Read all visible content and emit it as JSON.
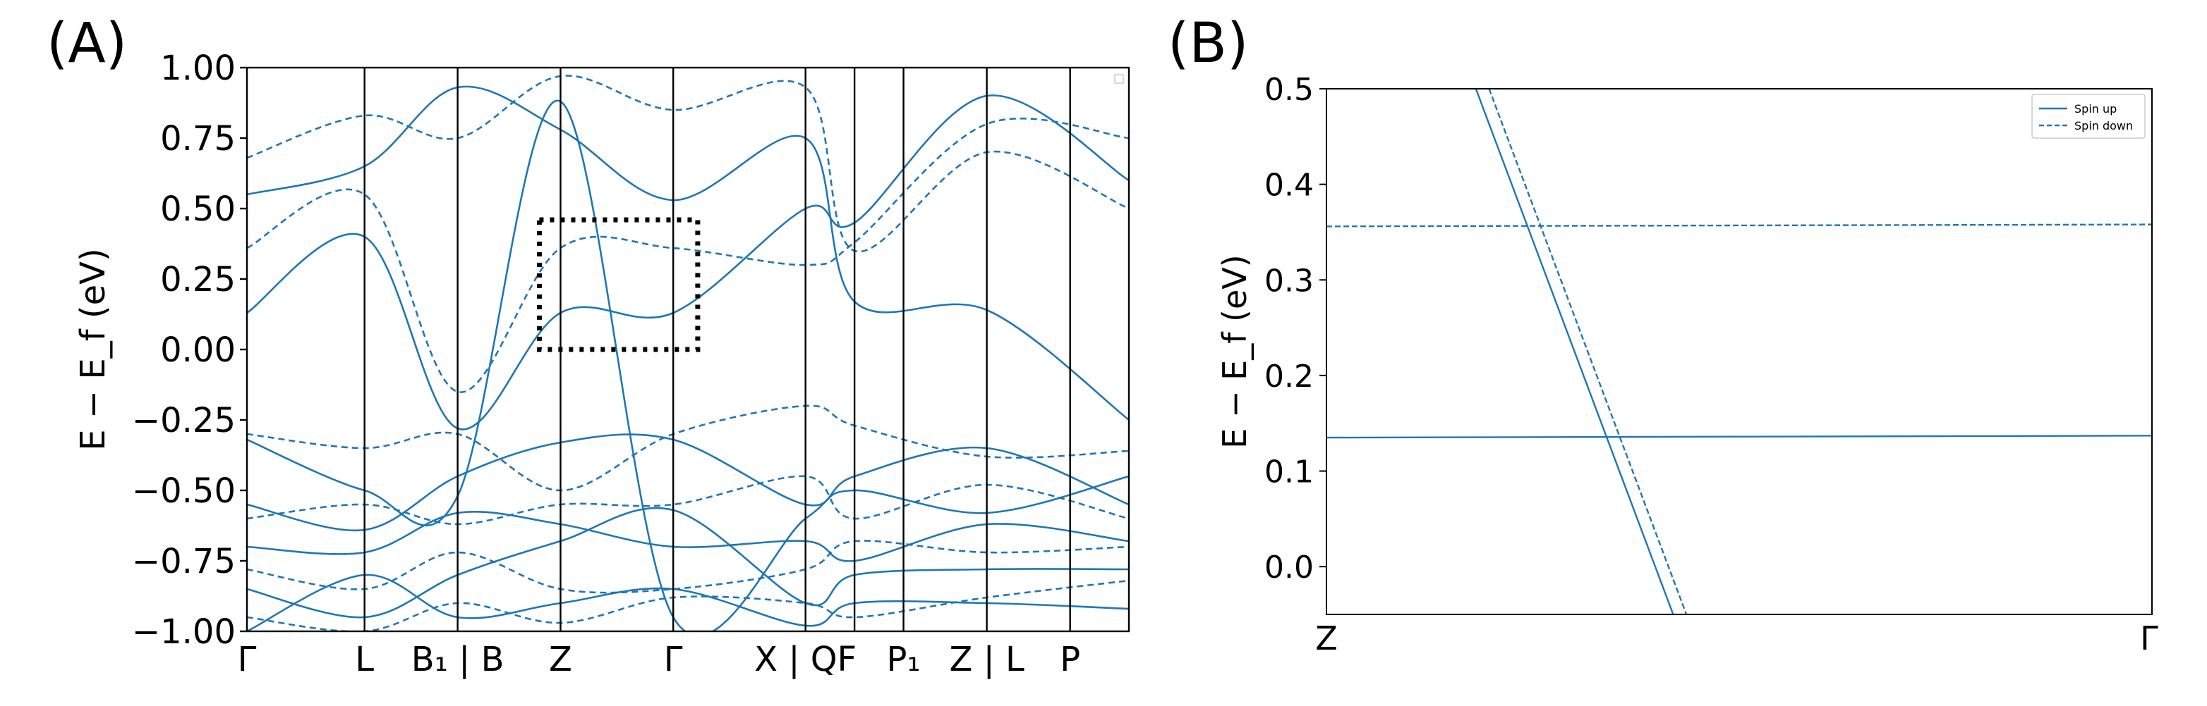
{
  "figure": {
    "panel_a_label": "(A)",
    "panel_b_label": "(B)"
  },
  "chart_data": [
    {
      "type": "line",
      "panel": "A",
      "title": "",
      "xlabel": "",
      "ylabel": "E − E_f (eV)",
      "ylim": [
        -1.0,
        1.0
      ],
      "yticks": [
        "1.00",
        "0.75",
        "0.50",
        "0.25",
        "0.00",
        "−0.25",
        "−0.50",
        "−0.75",
        "−1.00"
      ],
      "ytick_values": [
        1.0,
        0.75,
        0.5,
        0.25,
        0.0,
        -0.25,
        -0.5,
        -0.75,
        -1.0
      ],
      "xlim": [
        0,
        9.0
      ],
      "kpath_positions": [
        0,
        1.2,
        2.15,
        3.2,
        4.35,
        5.7,
        6.2,
        6.7,
        7.55,
        8.4
      ],
      "xtick_labels": [
        {
          "label": "Γ",
          "x": 0
        },
        {
          "label": "L",
          "x": 1.2
        },
        {
          "label": "B₁ | B",
          "x": 2.15
        },
        {
          "label": "Z",
          "x": 3.2
        },
        {
          "label": "Γ",
          "x": 4.35
        },
        {
          "label": "X | QF",
          "x": 5.7
        },
        {
          "label": "P₁",
          "x": 6.7
        },
        {
          "label": "Z | L",
          "x": 7.55
        },
        {
          "label": "P",
          "x": 8.4
        }
      ],
      "zoom_box": {
        "x_range": [
          3.2,
          4.6
        ],
        "y_range": [
          0.0,
          0.46
        ]
      },
      "series": [
        {
          "name": "Spin up",
          "style": "solid",
          "x": [
            0,
            1.2,
            2.15,
            3.2,
            4.35,
            5.7,
            6.2,
            7.55,
            9.0
          ],
          "y": [
            0.13,
            0.4,
            -0.28,
            0.13,
            0.13,
            0.5,
            0.45,
            0.9,
            0.6
          ]
        },
        {
          "name": "Spin up",
          "style": "solid",
          "x": [
            0,
            1.2,
            2.15,
            3.2,
            4.35,
            5.7,
            6.2,
            7.55,
            9.0
          ],
          "y": [
            0.55,
            0.65,
            0.93,
            0.78,
            0.53,
            0.75,
            0.17,
            0.14,
            -0.25
          ]
        },
        {
          "name": "Spin up",
          "style": "solid",
          "x": [
            0,
            1.2,
            2.15,
            3.2,
            4.35,
            5.7,
            6.2,
            7.55,
            9.0
          ],
          "y": [
            -0.55,
            -0.64,
            -0.45,
            -0.33,
            -0.32,
            -0.55,
            -0.45,
            -0.35,
            -0.55
          ]
        },
        {
          "name": "Spin up",
          "style": "solid",
          "x": [
            0,
            1.2,
            2.15,
            3.2,
            4.35,
            5.7,
            6.2,
            7.55,
            9.0
          ],
          "y": [
            -0.7,
            -0.72,
            -0.58,
            -0.62,
            -0.7,
            -0.68,
            -0.75,
            -0.62,
            -0.68
          ]
        },
        {
          "name": "Spin up",
          "style": "solid",
          "x": [
            0,
            1.2,
            2.15,
            3.2,
            4.35,
            5.7,
            6.2,
            7.55,
            9.0
          ],
          "y": [
            -0.85,
            -0.95,
            -0.8,
            -0.68,
            -0.57,
            -0.9,
            -0.8,
            -0.78,
            -0.78
          ]
        },
        {
          "name": "Spin up",
          "style": "solid",
          "x": [
            0,
            1.2,
            2.15,
            3.2,
            4.35,
            5.7,
            6.2,
            7.55,
            9.0
          ],
          "y": [
            -1.0,
            -0.8,
            -0.95,
            -0.9,
            -0.85,
            -0.98,
            -0.9,
            -0.9,
            -0.92
          ]
        },
        {
          "name": "Spin up",
          "style": "solid",
          "x": [
            0,
            1.2,
            2.15,
            3.2,
            4.35,
            5.7,
            6.2,
            7.55,
            9.0
          ],
          "y": [
            -0.32,
            -0.5,
            -0.52,
            0.88,
            -0.95,
            -0.6,
            -0.5,
            -0.58,
            -0.45
          ]
        },
        {
          "name": "Spin down",
          "style": "dashed",
          "x": [
            0,
            1.2,
            2.15,
            3.2,
            4.35,
            5.7,
            6.2,
            7.55,
            9.0
          ],
          "y": [
            0.36,
            0.55,
            -0.15,
            0.36,
            0.36,
            0.3,
            0.38,
            0.8,
            0.75
          ]
        },
        {
          "name": "Spin down",
          "style": "dashed",
          "x": [
            0,
            1.2,
            2.15,
            3.2,
            4.35,
            5.7,
            6.2,
            7.55,
            9.0
          ],
          "y": [
            0.68,
            0.83,
            0.75,
            0.97,
            0.85,
            0.93,
            0.35,
            0.7,
            0.5
          ]
        },
        {
          "name": "Spin down",
          "style": "dashed",
          "x": [
            0,
            1.2,
            2.15,
            3.2,
            4.35,
            5.7,
            6.2,
            7.55,
            9.0
          ],
          "y": [
            -0.3,
            -0.35,
            -0.3,
            -0.5,
            -0.3,
            -0.2,
            -0.27,
            -0.38,
            -0.36
          ]
        },
        {
          "name": "Spin down",
          "style": "dashed",
          "x": [
            0,
            1.2,
            2.15,
            3.2,
            4.35,
            5.7,
            6.2,
            7.55,
            9.0
          ],
          "y": [
            -0.6,
            -0.55,
            -0.62,
            -0.55,
            -0.55,
            -0.45,
            -0.6,
            -0.48,
            -0.6
          ]
        },
        {
          "name": "Spin down",
          "style": "dashed",
          "x": [
            0,
            1.2,
            2.15,
            3.2,
            4.35,
            5.7,
            6.2,
            7.55,
            9.0
          ],
          "y": [
            -0.78,
            -0.85,
            -0.72,
            -0.85,
            -0.85,
            -0.78,
            -0.68,
            -0.72,
            -0.7
          ]
        },
        {
          "name": "Spin down",
          "style": "dashed",
          "x": [
            0,
            1.2,
            2.15,
            3.2,
            4.35,
            5.7,
            6.2,
            7.55,
            9.0
          ],
          "y": [
            -0.95,
            -1.0,
            -0.9,
            -0.97,
            -0.88,
            -0.9,
            -0.95,
            -0.88,
            -0.82
          ]
        }
      ]
    },
    {
      "type": "line",
      "panel": "B",
      "title": "",
      "xlabel": "",
      "ylabel": "E − E_f (eV)",
      "ylim": [
        -0.05,
        0.5
      ],
      "yticks": [
        "0.5",
        "0.4",
        "0.3",
        "0.2",
        "0.1",
        "0.0"
      ],
      "ytick_values": [
        0.5,
        0.4,
        0.3,
        0.2,
        0.1,
        0.0
      ],
      "xlim": [
        0,
        1
      ],
      "xtick_labels": [
        {
          "label": "Z",
          "x": 0
        },
        {
          "label": "Γ",
          "x": 1
        }
      ],
      "legend": {
        "placement": "top-right",
        "entries": [
          "Spin up",
          "Spin down"
        ]
      },
      "series": [
        {
          "name": "Spin up",
          "style": "solid",
          "x": [
            0,
            1
          ],
          "y": [
            0.135,
            0.137
          ]
        },
        {
          "name": "Spin up",
          "style": "solid",
          "x": [
            0.181,
            0.42
          ],
          "y": [
            0.5,
            -0.05
          ]
        },
        {
          "name": "Spin down",
          "style": "dashed",
          "x": [
            0,
            1
          ],
          "y": [
            0.356,
            0.358
          ]
        },
        {
          "name": "Spin down",
          "style": "dashed",
          "x": [
            0.197,
            0.436
          ],
          "y": [
            0.5,
            -0.05
          ]
        }
      ]
    }
  ]
}
